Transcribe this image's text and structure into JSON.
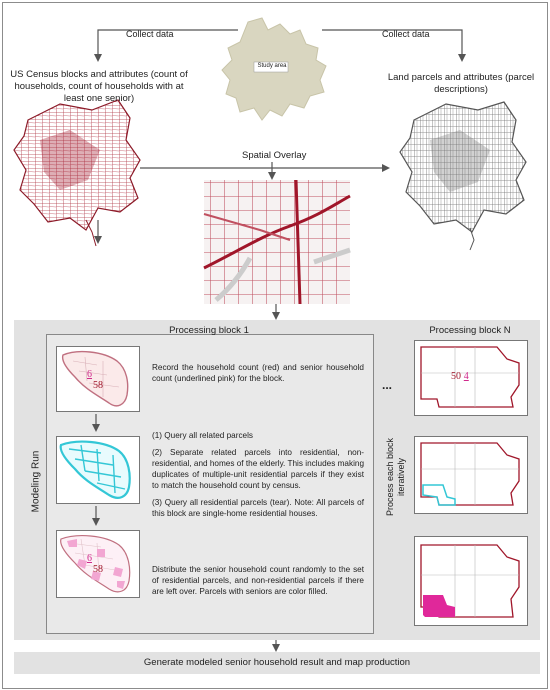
{
  "top": {
    "collect_left": "Collect data",
    "collect_right": "Collect data",
    "study_area_label": "Study area",
    "census_title": "US Census blocks and attributes (count of households, count of households with at least one senior)",
    "parcels_title": "Land parcels and attributes (parcel descriptions)",
    "spatial_overlay": "Spatial Overlay"
  },
  "modeling": {
    "side_label": "Modeling  Run",
    "block1_title": "Processing block 1",
    "blockN_title": "Processing block N",
    "ellipsis": "...",
    "iterate_label_line1": "Process  each block",
    "iterate_label_line2": "iteratively",
    "step1_text": "Record the household count (red) and senior household count (underlined pink) for the block.",
    "step2_items": [
      "(1) Query all related parcels",
      "(2) Separate related parcels into residential, non-residential, and homes of the elderly. This includes making duplicates of multiple-unit residential parcels if they exist to match the household count by census.",
      "(3) Query all residential parcels (tear). Note: All parcels of this block are single-home residential houses."
    ],
    "step3_text": "Distribute the senior household count randomly to the set of residential parcels, and non-residential parcels if there are left over. Parcels with seniors are color filled.",
    "block1_household_count": "58",
    "block1_senior_count": "6",
    "blockN_household_count": "50",
    "blockN_senior_count": "4"
  },
  "footer": {
    "text": "Generate modeled senior household result and map production"
  },
  "colors": {
    "census_red": "#a0162a",
    "parcel_gray": "#7a7a7a",
    "study_area_fill": "#d9d6c0",
    "cyan_parcels": "#33c7d6",
    "pink_fill": "#f2a6d2",
    "magenta_fill": "#e0289a"
  }
}
